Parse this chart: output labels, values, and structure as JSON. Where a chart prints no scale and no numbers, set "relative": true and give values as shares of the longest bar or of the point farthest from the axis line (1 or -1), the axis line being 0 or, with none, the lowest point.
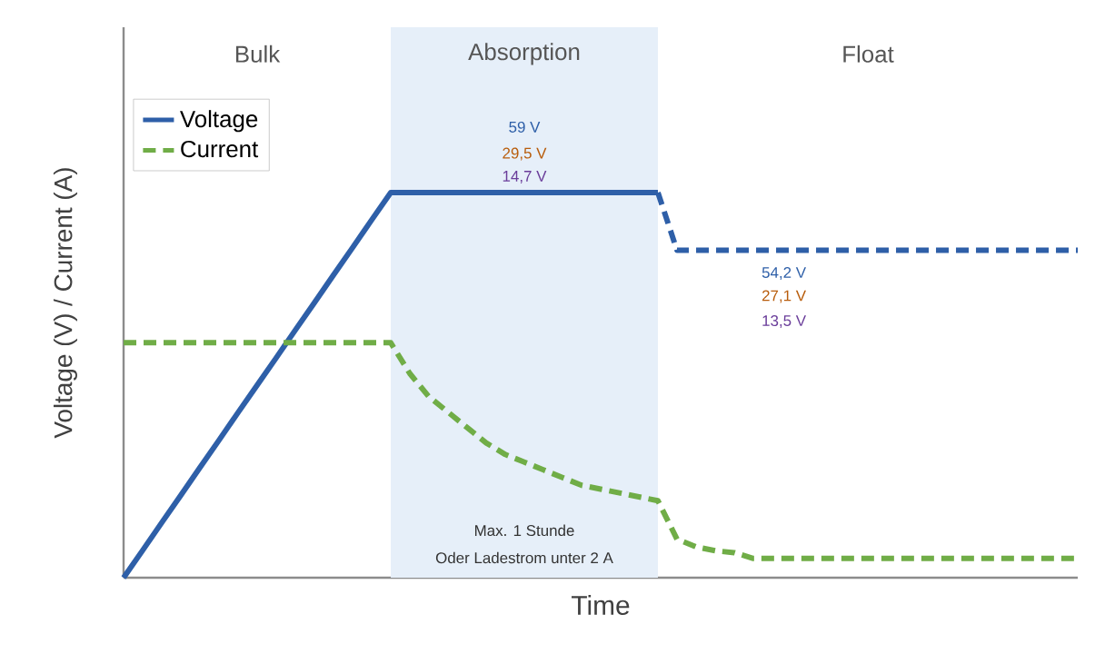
{
  "chart_data": {
    "type": "line",
    "relative": true,
    "xlabel": "Time",
    "ylabel": "Voltage (V) / Current (A)",
    "categories": [
      null,
      null,
      null,
      null,
      null,
      null,
      null,
      null,
      null,
      null,
      null,
      null,
      null,
      null,
      null,
      null,
      null,
      null,
      null,
      null,
      null,
      null,
      null,
      null,
      null,
      null,
      null,
      null,
      null,
      null,
      null,
      null,
      null,
      null,
      null,
      null,
      null,
      null,
      null,
      null,
      null,
      null,
      null,
      null,
      null,
      null,
      null,
      null,
      null,
      null,
      null
    ],
    "series": [
      {
        "name": "Voltage",
        "color": "#2e5fa8",
        "line_style": "solid",
        "values": [
          0,
          0.071,
          0.143,
          0.214,
          0.286,
          0.357,
          0.429,
          0.5,
          0.571,
          0.643,
          0.714,
          0.786,
          0.857,
          0.929,
          1,
          1,
          1,
          1,
          1,
          1,
          1,
          1,
          1,
          1,
          1,
          1,
          1,
          1,
          1,
          null,
          null,
          null,
          null,
          null,
          null,
          null,
          null,
          null,
          null,
          null,
          null,
          null,
          null,
          null,
          null,
          null,
          null,
          null,
          null,
          null,
          null
        ]
      },
      {
        "color": "#2e5fa8",
        "line_style": "dashed",
        "values": [
          null,
          null,
          null,
          null,
          null,
          null,
          null,
          null,
          null,
          null,
          null,
          null,
          null,
          null,
          null,
          null,
          null,
          null,
          null,
          null,
          null,
          null,
          null,
          null,
          null,
          null,
          null,
          null,
          1,
          0.85,
          0.85,
          0.85,
          0.85,
          0.85,
          0.85,
          0.85,
          0.85,
          0.85,
          0.85,
          0.85,
          0.85,
          0.85,
          0.85,
          0.85,
          0.85,
          0.85,
          0.85,
          0.85,
          0.85,
          0.85,
          0.85
        ]
      },
      {
        "name": "Current",
        "color": "#70ad47",
        "line_style": "dashed",
        "values": [
          0.61,
          0.61,
          0.61,
          0.61,
          0.61,
          0.61,
          0.61,
          0.61,
          0.61,
          0.61,
          0.61,
          0.61,
          0.61,
          0.61,
          0.61,
          0.53,
          0.47,
          0.43,
          0.39,
          0.35,
          0.32,
          0.3,
          0.28,
          0.26,
          0.24,
          0.23,
          0.22,
          0.21,
          0.2,
          0.1,
          0.08,
          0.07,
          0.065,
          0.05,
          0.05,
          0.05,
          0.05,
          0.05,
          0.05,
          0.05,
          0.05,
          0.05,
          0.05,
          0.05,
          0.05,
          0.05,
          0.05,
          0.05,
          0.05,
          0.05,
          0.05
        ]
      }
    ],
    "annotations": [
      "Bulk",
      "Absorption",
      "Float",
      "59 V",
      "29,5 V",
      "14,7 V",
      "54,2 V",
      "27,1 V",
      "13,5 V",
      "Max. 1 Stunde",
      "Oder Ladestrom unter 2 A"
    ],
    "legend": "top left",
    "marker": "none"
  }
}
